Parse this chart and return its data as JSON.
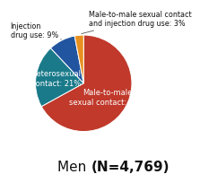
{
  "slices": [
    {
      "label": "Male-to-male\nsexual contact: 67%",
      "value": 67,
      "color": "#c0392b",
      "text_color": "#ffffff",
      "internal": true
    },
    {
      "label": "Heterosexual\ncontact: 21%",
      "value": 21,
      "color": "#1a7a8a",
      "text_color": "#ffffff",
      "internal": true
    },
    {
      "label": "Injection\ndrug use: 9%",
      "value": 9,
      "color": "#2255a0",
      "text_color": "#222222",
      "internal": false
    },
    {
      "label": "Male-to-male sexual contact\nand injection drug use: 3%",
      "value": 3,
      "color": "#e89020",
      "text_color": "#222222",
      "internal": false
    }
  ],
  "title_regular": "Men ",
  "title_bold": "(N=4,769)",
  "start_angle": 90,
  "background_color": "#ffffff"
}
